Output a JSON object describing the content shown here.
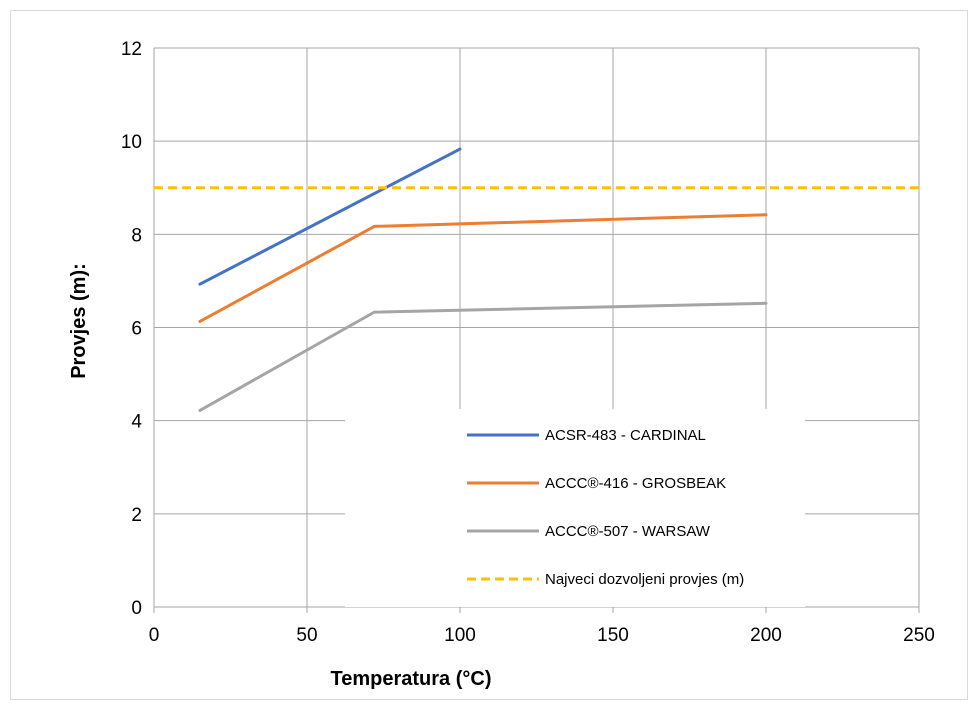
{
  "chart_data": {
    "type": "line",
    "title": "",
    "xlabel": "Temperatura (°C)",
    "ylabel": "Provjes (m):",
    "xlim": [
      0,
      250
    ],
    "ylim": [
      0,
      12
    ],
    "xticks": [
      0,
      50,
      100,
      150,
      200,
      250
    ],
    "yticks": [
      0,
      2,
      4,
      6,
      8,
      10,
      12
    ],
    "grid": true,
    "legend_position": "lower-center",
    "series": [
      {
        "name": "ACSR-483 - CARDINAL",
        "color": "#4472c4",
        "style": "solid",
        "x": [
          15,
          100
        ],
        "y": [
          6.93,
          9.83
        ]
      },
      {
        "name": "ACCC®-416 - GROSBEAK",
        "color": "#ed7d31",
        "style": "solid",
        "x": [
          15,
          72,
          200
        ],
        "y": [
          6.13,
          8.17,
          8.42
        ]
      },
      {
        "name": "ACCC®-507 - WARSAW",
        "color": "#a5a5a5",
        "style": "solid",
        "x": [
          15,
          72,
          200
        ],
        "y": [
          4.22,
          6.33,
          6.52
        ]
      },
      {
        "name": "Najveci dozvoljeni provjes (m)",
        "color": "#ffc000",
        "style": "dashed",
        "x": [
          0,
          250
        ],
        "y": [
          9,
          9
        ]
      }
    ]
  }
}
